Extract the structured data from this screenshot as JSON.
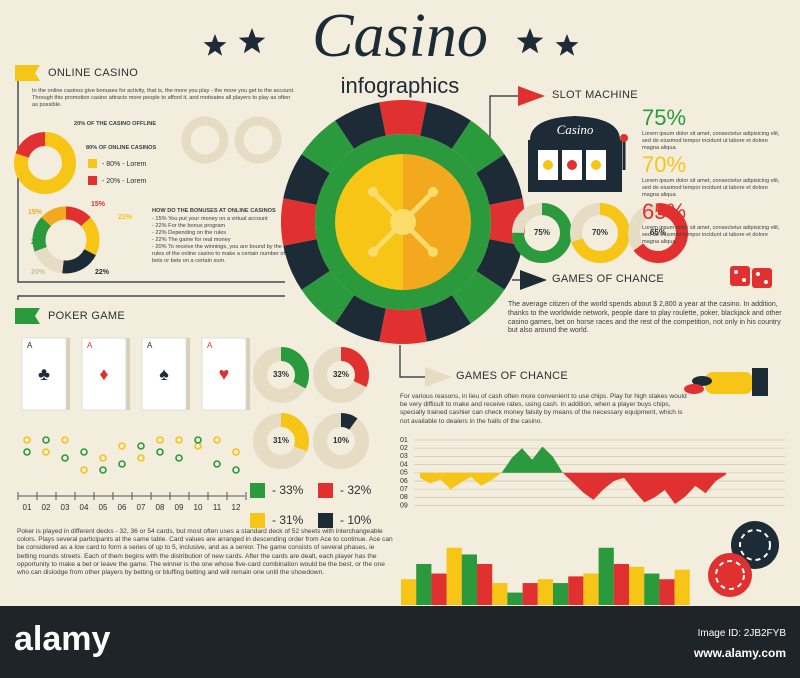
{
  "header": {
    "title": "Casino",
    "subtitle": "infographics"
  },
  "online_casino": {
    "title": "ONLINE CASINO",
    "text": "In the online casinos give bonuses for activity, that is, the more you play - the more you get to the account. Through this promotion casino attracts more people to afford it, and motivates all players to play as often as possible.",
    "offline_label": "20% OF THE CASINO OFFLINE",
    "online_label": "80% OF ONLINE CASINOS",
    "legend": [
      {
        "value": 80,
        "label": "- 80% - Lorem",
        "color": "#f6c515"
      },
      {
        "value": 20,
        "label": "- 20% - Lorem",
        "color": "#e0302f"
      }
    ],
    "bonus_title": "HOW DO THE BONUSES AT ONLINE CASINOS",
    "bonus_items": [
      "- 15% You put your money on a virtual account",
      "- 22% For the bonus program",
      "- 22% Depending on the rules",
      "- 22% The game for real money",
      "- 20% To receive the winnings, you are bound by the rules of the online casino to make a certain number of bets or bets on a certain sum."
    ],
    "bonus_donut": [
      {
        "value": 15,
        "label": "15%",
        "color": "#e0302f"
      },
      {
        "value": 22,
        "label": "22%",
        "color": "#f6c515"
      },
      {
        "value": 22,
        "label": "22%",
        "color": "#1d2b36"
      },
      {
        "value": 20,
        "label": "20%",
        "color": "#e6dcc3"
      },
      {
        "value": 20,
        "label": "20%",
        "color": "#2a9a3d"
      },
      {
        "value": 15,
        "label": "15%",
        "color": "#f3a91d"
      }
    ]
  },
  "slot_machine": {
    "title": "SLOT MACHINE",
    "sign": "Casino",
    "stats": [
      {
        "value": 75,
        "label": "75%",
        "color": "#2a9a3d",
        "text": "Lorem ipsum dolor sit amet, consectetur adipisicing elit, sed do eiusmod tempor incidunt ut labore et dolore magna aliqua."
      },
      {
        "value": 70,
        "label": "70%",
        "color": "#f6c515",
        "text": "Lorem ipsum dolor sit amet, consectetur adipisicing elit, sed do eiusmod tempor incidunt ut labore et dolore magna aliqua."
      },
      {
        "value": 65,
        "label": "65%",
        "color": "#e0302f",
        "text": "Lorem ipsum dolor sit amet, consectetur adipisicing elit, sed do eiusmod tempor incidunt ut labore et dolore magna aliqua."
      }
    ]
  },
  "games_of_chance": {
    "title": "GAMES OF CHANCE",
    "text": "The average citizen of the world spends about $ 2,800 a year at the casino. In addition, thanks to the worldwide network, people dare to play roulette, poker, blackjack and other casino games, bet on horse races and the rest of the competition, not only in his country but also around the world."
  },
  "chips": {
    "title": "GAMES OF CHANCE",
    "text": "For various reasons, in lieu of cash often more convenient to use chips. Play for high stakes would be very difficult to make and receive rates, using cash. In addition, when a player buys chips, specially trained cashier can check money falsity by means of the necessary equipment, which is not available to dealers in the halls of the casino.",
    "area_chart": {
      "yticks": [
        {
          "value": 1,
          "label": "01"
        },
        {
          "value": 2,
          "label": "02"
        },
        {
          "value": 3,
          "label": "03"
        },
        {
          "value": 4,
          "label": "04"
        },
        {
          "value": 5,
          "label": "05"
        },
        {
          "value": 6,
          "label": "06"
        },
        {
          "value": 7,
          "label": "07"
        },
        {
          "value": 8,
          "label": "08"
        },
        {
          "value": 9,
          "label": "09"
        }
      ],
      "baseline": 5,
      "x": [
        0,
        1,
        2,
        3,
        4,
        5,
        6,
        7,
        8,
        9,
        10,
        11,
        12,
        13,
        14,
        15,
        16,
        17,
        18,
        19,
        20,
        21,
        22,
        23,
        24,
        25,
        26,
        27,
        28,
        29,
        30
      ],
      "series": [
        {
          "color": "#f6c515",
          "values": [
            5.6,
            6.3,
            5.8,
            7.0,
            6.2,
            5.5,
            6.6,
            5.9,
            5.0,
            null,
            null,
            null,
            null,
            null,
            null,
            null,
            null,
            null,
            null,
            null,
            null,
            null,
            null,
            null,
            null,
            null,
            null,
            null,
            null,
            null,
            null
          ]
        },
        {
          "color": "#2a9a3d",
          "values": [
            null,
            null,
            null,
            null,
            null,
            null,
            null,
            null,
            5.0,
            3.2,
            2.0,
            3.4,
            1.8,
            3.0,
            5.0,
            null,
            null,
            null,
            null,
            null,
            null,
            null,
            null,
            null,
            null,
            null,
            null,
            null,
            null,
            null,
            null
          ]
        },
        {
          "color": "#e0302f",
          "values": [
            null,
            null,
            null,
            null,
            null,
            null,
            null,
            null,
            null,
            null,
            null,
            null,
            null,
            null,
            5.0,
            6.2,
            7.4,
            8.3,
            7.0,
            6.0,
            5.6,
            7.2,
            8.6,
            8.0,
            7.1,
            8.8,
            7.9,
            6.6,
            7.5,
            6.0,
            5.2
          ]
        }
      ]
    },
    "bar_chart": {
      "colors": [
        "#f6c515",
        "#2a9a3d",
        "#e0302f"
      ],
      "values": [
        27,
        43,
        33,
        60,
        53,
        43,
        23,
        13,
        23,
        27,
        23,
        30,
        33,
        60,
        43,
        40,
        33,
        27,
        37
      ]
    }
  },
  "poker": {
    "title": "POKER GAME",
    "cards": [
      {
        "rank": "A",
        "suit": "♣",
        "color": "#1d2b36"
      },
      {
        "rank": "A",
        "suit": "♦",
        "color": "#e0302f"
      },
      {
        "rank": "A",
        "suit": "♠",
        "color": "#1d2b36"
      },
      {
        "rank": "A",
        "suit": "♥",
        "color": "#e0302f"
      }
    ],
    "shares": [
      {
        "value": 33,
        "donut_label": "33%",
        "label": "- 33%",
        "color": "#2a9a3d"
      },
      {
        "value": 32,
        "donut_label": "32%",
        "label": "- 32%",
        "color": "#e0302f"
      },
      {
        "value": 31,
        "donut_label": "31%",
        "label": "- 31%",
        "color": "#f6c515"
      },
      {
        "value": 10,
        "donut_label": "10%",
        "label": "- 10%",
        "color": "#1d2b36"
      }
    ],
    "dot_chart": {
      "categories": [
        "01",
        "02",
        "03",
        "04",
        "05",
        "06",
        "07",
        "08",
        "09",
        "10",
        "11",
        "12"
      ],
      "series": [
        {
          "color": "#f6c515",
          "values": [
            8,
            6,
            8,
            3,
            5,
            7,
            5,
            8,
            8,
            7,
            8,
            6
          ]
        },
        {
          "color": "#2a9a3d",
          "values": [
            6,
            8,
            5,
            6,
            3,
            4,
            7,
            6,
            5,
            8,
            4,
            3
          ]
        }
      ]
    },
    "text": "Poker is played in different decks - 32, 36 or 54 cards, but most often uses a standard deck of 52 sheets with interchangeable colors. Plays several participants at the same table. Card values are arranged in descending order from Ace to continue. Ace can be considered as a low card to form a series of up to 5, inclusive, and as a senior. The game consists of several phases, ie betting rounds streets. Each of them begins with the distribution of new cards. After the cards are dealt, each player has the opportunity to make a bet or leave the game. The winner is the one whose five-card combination would be the best, or the one who can dislodge from other players by betting or bluffing betting and will remain one until the showdown."
  },
  "footer": {
    "brand": "alamy",
    "image_id": "Image ID: 2JB2FYB",
    "url": "www.alamy.com"
  }
}
